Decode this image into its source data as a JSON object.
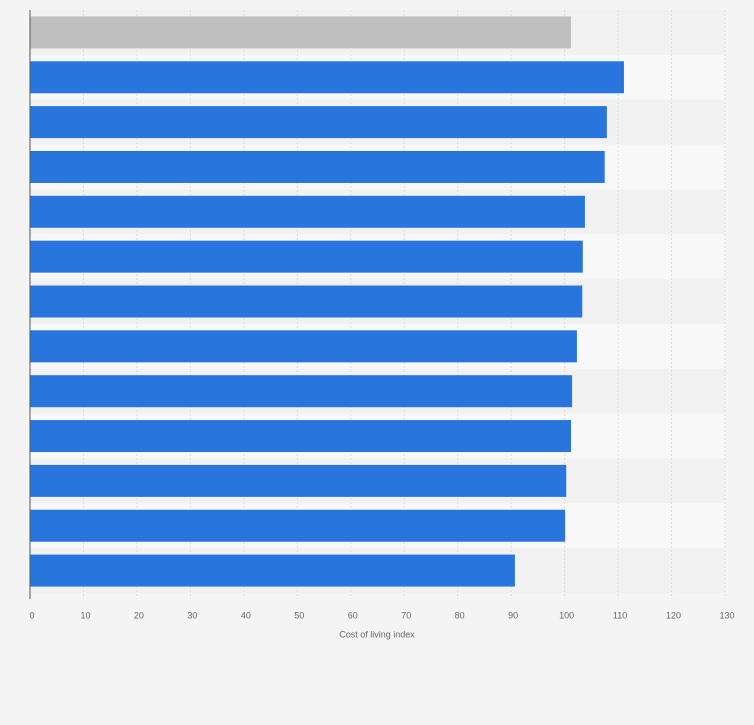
{
  "chart_data": {
    "type": "bar",
    "orientation": "horizontal",
    "xlabel": "Cost of living index",
    "categories": [
      null,
      null,
      null,
      null,
      null,
      null,
      null,
      null,
      null,
      null,
      null,
      null,
      null
    ],
    "values": [
      101.2,
      111.1,
      107.9,
      107.5,
      103.8,
      103.4,
      103.3,
      102.3,
      101.4,
      101.2,
      100.3,
      100.1,
      90.7
    ],
    "colors": [
      "#bfbfbf",
      "#2876dd",
      "#2876dd",
      "#2876dd",
      "#2876dd",
      "#2876dd",
      "#2876dd",
      "#2876dd",
      "#2876dd",
      "#2876dd",
      "#2876dd",
      "#2876dd",
      "#2876dd"
    ],
    "xlim": [
      0,
      130
    ],
    "xticks": [
      0,
      10,
      20,
      30,
      40,
      50,
      60,
      70,
      80,
      90,
      100,
      110,
      120,
      130
    ],
    "grid": true
  }
}
